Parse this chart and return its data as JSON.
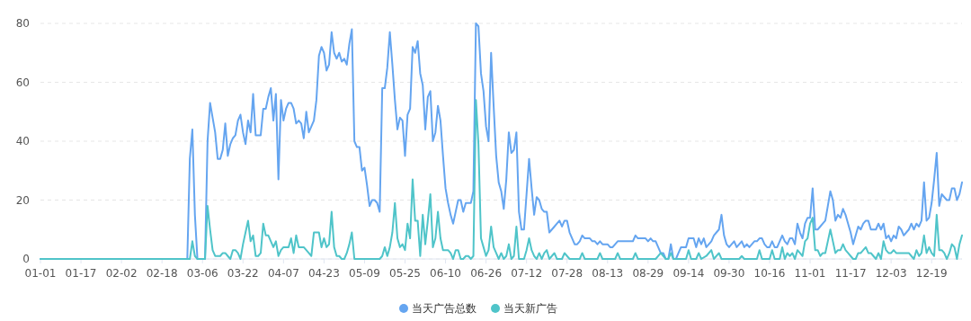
{
  "chart_data": {
    "type": "line",
    "xlim": [
      "--01-01",
      "--12-31"
    ],
    "ylim": [
      0,
      80
    ],
    "yticks": [
      0,
      20,
      40,
      60,
      80
    ],
    "xticks": [
      {
        "value": "--01-01",
        "label": "01-01"
      },
      {
        "value": "--01-17",
        "label": "01-17"
      },
      {
        "value": "--02-02",
        "label": "02-02"
      },
      {
        "value": "--02-18",
        "label": "02-18"
      },
      {
        "value": "--03-06",
        "label": "03-06"
      },
      {
        "value": "--03-22",
        "label": "03-22"
      },
      {
        "value": "--04-07",
        "label": "04-07"
      },
      {
        "value": "--04-23",
        "label": "04-23"
      },
      {
        "value": "--05-09",
        "label": "05-09"
      },
      {
        "value": "--05-25",
        "label": "05-25"
      },
      {
        "value": "--06-10",
        "label": "06-10"
      },
      {
        "value": "--06-26",
        "label": "06-26"
      },
      {
        "value": "--07-12",
        "label": "07-12"
      },
      {
        "value": "--07-28",
        "label": "07-28"
      },
      {
        "value": "--08-13",
        "label": "08-13"
      },
      {
        "value": "--08-29",
        "label": "08-29"
      },
      {
        "value": "--09-14",
        "label": "09-14"
      },
      {
        "value": "--09-30",
        "label": "09-30"
      },
      {
        "value": "--10-16",
        "label": "10-16"
      },
      {
        "value": "--11-01",
        "label": "11-01"
      },
      {
        "value": "--11-17",
        "label": "11-17"
      },
      {
        "value": "--12-03",
        "label": "12-03"
      },
      {
        "value": "--12-19",
        "label": "12-19"
      }
    ],
    "grid": "y",
    "legend": "bottom",
    "marker": "none",
    "line_style": "solid",
    "series": [
      {
        "name": "当天广告总数",
        "color": "#65a5f0",
        "x": [
          "--01-01",
          "--02-28",
          "--03-01",
          "--03-02",
          "--03-03",
          "--03-04",
          "--03-07",
          "--03-08",
          "--03-09",
          "--03-10",
          "--03-11",
          "--03-12",
          "--03-13",
          "--03-14",
          "--03-15",
          "--03-16",
          "--03-17",
          "--03-18",
          "--03-19",
          "--03-20",
          "--03-21",
          "--03-22",
          "--03-23",
          "--03-24",
          "--03-25",
          "--03-26",
          "--03-27",
          "--03-28",
          "--03-29",
          "--03-30",
          "--03-31",
          "--04-01",
          "--04-02",
          "--04-03",
          "--04-04",
          "--04-05",
          "--04-06",
          "--04-07",
          "--04-08",
          "--04-09",
          "--04-10",
          "--04-11",
          "--04-12",
          "--04-13",
          "--04-14",
          "--04-15",
          "--04-16",
          "--04-17",
          "--04-18",
          "--04-19",
          "--04-20",
          "--04-21",
          "--04-22",
          "--04-23",
          "--04-24",
          "--04-25",
          "--04-26",
          "--04-27",
          "--04-28",
          "--04-29",
          "--04-30",
          "--05-01",
          "--05-02",
          "--05-03",
          "--05-04",
          "--05-05",
          "--05-06",
          "--05-07",
          "--05-08",
          "--05-09",
          "--05-10",
          "--05-11",
          "--05-12",
          "--05-13",
          "--05-14",
          "--05-15",
          "--05-16",
          "--05-17",
          "--05-18",
          "--05-19",
          "--05-20",
          "--05-21",
          "--05-22",
          "--05-23",
          "--05-24",
          "--05-25",
          "--05-26",
          "--05-27",
          "--05-28",
          "--05-29",
          "--05-30",
          "--05-31",
          "--06-01",
          "--06-02",
          "--06-03",
          "--06-04",
          "--06-05",
          "--06-06",
          "--06-07",
          "--06-08",
          "--06-09",
          "--06-10",
          "--06-11",
          "--06-12",
          "--06-13",
          "--06-14",
          "--06-15",
          "--06-16",
          "--06-17",
          "--06-18",
          "--06-19",
          "--06-20",
          "--06-21",
          "--06-22",
          "--06-23",
          "--06-24",
          "--06-25",
          "--06-26",
          "--06-27",
          "--06-28",
          "--06-29",
          "--06-30",
          "--07-01",
          "--07-02",
          "--07-03",
          "--07-04",
          "--07-05",
          "--07-06",
          "--07-07",
          "--07-08",
          "--07-09",
          "--07-10",
          "--07-11",
          "--07-12",
          "--07-13",
          "--07-14",
          "--07-15",
          "--07-16",
          "--07-17",
          "--07-18",
          "--07-19",
          "--07-20",
          "--07-21",
          "--07-22",
          "--07-23",
          "--07-24",
          "--07-25",
          "--07-26",
          "--07-27",
          "--07-28",
          "--07-29",
          "--07-30",
          "--07-31",
          "--08-01",
          "--08-02",
          "--08-03",
          "--08-04",
          "--08-05",
          "--08-06",
          "--08-07",
          "--08-08",
          "--08-09",
          "--08-10",
          "--08-11",
          "--08-12",
          "--08-13",
          "--08-14",
          "--08-15",
          "--08-16",
          "--08-17",
          "--08-18",
          "--08-20",
          "--08-23",
          "--08-24",
          "--08-25",
          "--08-28",
          "--08-29",
          "--08-30",
          "--08-31",
          "--09-01",
          "--09-02",
          "--09-03",
          "--09-04",
          "--09-05",
          "--09-06",
          "--09-07",
          "--09-08",
          "--09-09",
          "--09-10",
          "--09-11",
          "--09-12",
          "--09-13",
          "--09-14",
          "--09-15",
          "--09-16",
          "--09-17",
          "--09-18",
          "--09-19",
          "--09-20",
          "--09-21",
          "--09-22",
          "--09-23",
          "--09-24",
          "--09-25",
          "--09-26",
          "--09-27",
          "--09-28",
          "--09-29",
          "--09-30",
          "--10-01",
          "--10-02",
          "--10-03",
          "--10-04",
          "--10-05",
          "--10-06",
          "--10-07",
          "--10-08",
          "--10-09",
          "--10-10",
          "--10-11",
          "--10-12",
          "--10-13",
          "--10-14",
          "--10-15",
          "--10-16",
          "--10-17",
          "--10-18",
          "--10-19",
          "--10-20",
          "--10-21",
          "--10-22",
          "--10-23",
          "--10-24",
          "--10-25",
          "--10-26",
          "--10-27",
          "--10-28",
          "--10-29",
          "--10-30",
          "--10-31",
          "--11-01",
          "--11-02",
          "--11-03",
          "--11-04",
          "--11-05",
          "--11-06",
          "--11-07",
          "--11-08",
          "--11-09",
          "--11-10",
          "--11-11",
          "--11-12",
          "--11-13",
          "--11-14",
          "--11-15",
          "--11-16",
          "--11-17",
          "--11-18",
          "--11-19",
          "--11-20",
          "--11-21",
          "--11-22",
          "--11-23",
          "--11-24",
          "--11-25",
          "--11-26",
          "--11-27",
          "--11-28",
          "--11-29",
          "--11-30",
          "--12-01",
          "--12-02",
          "--12-03",
          "--12-04",
          "--12-05",
          "--12-06",
          "--12-07",
          "--12-08",
          "--12-09",
          "--12-10",
          "--12-11",
          "--12-12",
          "--12-13",
          "--12-14",
          "--12-15",
          "--12-16",
          "--12-17",
          "--12-18",
          "--12-19",
          "--12-20",
          "--12-21",
          "--12-22",
          "--12-23",
          "--12-24",
          "--12-25",
          "--12-26",
          "--12-27",
          "--12-28",
          "--12-29",
          "--12-30",
          "--12-31"
        ],
        "values": [
          0,
          0,
          34,
          44,
          15,
          0,
          0,
          40,
          53,
          48,
          43,
          34,
          34,
          37,
          46,
          35,
          39,
          41,
          42,
          47,
          49,
          43,
          39,
          47,
          43,
          56,
          42,
          42,
          42,
          51,
          51,
          55,
          58,
          47,
          56,
          27,
          54,
          47,
          51,
          53,
          53,
          51,
          46,
          47,
          46,
          41,
          50,
          43,
          45,
          47,
          54,
          69,
          72,
          70,
          64,
          66,
          77,
          70,
          68,
          70,
          67,
          68,
          66,
          73,
          78,
          40,
          38,
          38,
          30,
          31,
          25,
          18,
          20,
          20,
          19,
          16,
          58,
          58,
          65,
          77,
          66,
          54,
          44,
          48,
          47,
          35,
          49,
          51,
          72,
          70,
          74,
          63,
          59,
          44,
          55,
          57,
          40,
          43,
          52,
          47,
          35,
          24,
          19,
          15,
          12,
          16,
          20,
          20,
          16,
          19,
          19,
          19,
          23,
          80,
          79,
          63,
          57,
          45,
          40,
          70,
          52,
          35,
          26,
          23,
          17,
          27,
          43,
          36,
          37,
          43,
          16,
          10,
          10,
          22,
          34,
          24,
          15,
          21,
          20,
          17,
          16,
          16,
          9,
          10,
          11,
          12,
          13,
          11,
          13,
          13,
          9,
          7,
          5,
          5,
          6,
          8,
          7,
          7,
          7,
          6,
          6,
          5,
          6,
          5,
          5,
          5,
          4,
          4,
          5,
          6,
          6,
          6,
          6,
          8,
          7,
          7,
          6,
          7,
          6,
          6,
          4,
          2,
          2,
          0,
          0,
          5,
          0,
          0,
          2,
          4,
          4,
          4,
          7,
          7,
          7,
          4,
          7,
          5,
          7,
          4,
          5,
          6,
          8,
          9,
          10,
          15,
          8,
          5,
          4,
          5,
          6,
          4,
          5,
          6,
          4,
          5,
          4,
          5,
          6,
          6,
          7,
          7,
          5,
          4,
          4,
          6,
          4,
          4,
          6,
          8,
          6,
          5,
          7,
          7,
          5,
          12,
          9,
          7,
          12,
          14,
          14,
          24,
          10,
          10,
          11,
          12,
          13,
          18,
          23,
          20,
          13,
          15,
          14,
          17,
          15,
          12,
          9,
          5,
          8,
          11,
          10,
          12,
          13,
          13,
          10,
          10,
          10,
          12,
          10,
          12,
          7,
          8,
          6,
          8,
          7,
          11,
          10,
          8,
          9,
          10,
          12,
          10,
          12,
          11,
          13,
          26,
          13,
          14,
          19,
          27,
          36,
          18,
          22,
          21,
          20,
          20,
          24,
          24,
          20,
          22,
          26
        ]
      },
      {
        "name": "当天新广告",
        "color": "#4fc4c9",
        "x": [
          "--01-01",
          "--03-01",
          "--03-02",
          "--03-03",
          "--03-04",
          "--03-07",
          "--03-08",
          "--03-09",
          "--03-10",
          "--03-11",
          "--03-12",
          "--03-13",
          "--03-14",
          "--03-15",
          "--03-16",
          "--03-17",
          "--03-18",
          "--03-19",
          "--03-20",
          "--03-21",
          "--03-22",
          "--03-23",
          "--03-24",
          "--03-25",
          "--03-26",
          "--03-27",
          "--03-28",
          "--03-29",
          "--03-30",
          "--03-31",
          "--04-01",
          "--04-02",
          "--04-03",
          "--04-04",
          "--04-05",
          "--04-06",
          "--04-07",
          "--04-08",
          "--04-09",
          "--04-10",
          "--04-11",
          "--04-12",
          "--04-13",
          "--04-14",
          "--04-15",
          "--04-16",
          "--04-17",
          "--04-18",
          "--04-19",
          "--04-20",
          "--04-21",
          "--04-22",
          "--04-23",
          "--04-24",
          "--04-25",
          "--04-26",
          "--04-27",
          "--04-28",
          "--04-29",
          "--04-30",
          "--05-01",
          "--05-02",
          "--05-03",
          "--05-04",
          "--05-05",
          "--05-15",
          "--05-16",
          "--05-17",
          "--05-18",
          "--05-19",
          "--05-20",
          "--05-21",
          "--05-22",
          "--05-23",
          "--05-24",
          "--05-25",
          "--05-26",
          "--05-27",
          "--05-28",
          "--05-29",
          "--05-30",
          "--05-31",
          "--06-01",
          "--06-02",
          "--06-03",
          "--06-04",
          "--06-05",
          "--06-06",
          "--06-07",
          "--06-08",
          "--06-09",
          "--06-10",
          "--06-11",
          "--06-12",
          "--06-13",
          "--06-14",
          "--06-15",
          "--06-16",
          "--06-17",
          "--06-18",
          "--06-19",
          "--06-20",
          "--06-21",
          "--06-22",
          "--06-23",
          "--06-24",
          "--06-25",
          "--06-26",
          "--06-27",
          "--06-28",
          "--06-29",
          "--06-30",
          "--07-01",
          "--07-02",
          "--07-03",
          "--07-04",
          "--07-05",
          "--07-06",
          "--07-07",
          "--07-08",
          "--07-09",
          "--07-11",
          "--07-12",
          "--07-13",
          "--07-14",
          "--07-15",
          "--07-16",
          "--07-17",
          "--07-18",
          "--07-19",
          "--07-20",
          "--07-21",
          "--07-22",
          "--07-23",
          "--07-24",
          "--07-26",
          "--07-27",
          "--07-28",
          "--07-29",
          "--08-02",
          "--08-03",
          "--08-04",
          "--08-09",
          "--08-10",
          "--08-11",
          "--08-16",
          "--08-17",
          "--08-18",
          "--08-23",
          "--08-24",
          "--08-25",
          "--09-01",
          "--09-03",
          "--09-05",
          "--09-06",
          "--09-07",
          "--09-08",
          "--09-13",
          "--09-14",
          "--09-15",
          "--09-17",
          "--09-18",
          "--09-19",
          "--09-21",
          "--09-23",
          "--09-24",
          "--09-26",
          "--09-27",
          "--10-04",
          "--10-05",
          "--10-06",
          "--10-11",
          "--10-12",
          "--10-13",
          "--10-16",
          "--10-17",
          "--10-18",
          "--10-20",
          "--10-21",
          "--10-22",
          "--10-23",
          "--10-24",
          "--10-25",
          "--10-26",
          "--10-27",
          "--10-28",
          "--10-29",
          "--10-30",
          "--10-31",
          "--11-01",
          "--11-02",
          "--11-03",
          "--11-04",
          "--11-05",
          "--11-06",
          "--11-07",
          "--11-08",
          "--11-09",
          "--11-10",
          "--11-11",
          "--11-12",
          "--11-13",
          "--11-14",
          "--11-15",
          "--11-16",
          "--11-17",
          "--11-18",
          "--11-19",
          "--11-20",
          "--11-21",
          "--11-22",
          "--11-23",
          "--11-24",
          "--11-25",
          "--11-26",
          "--11-27",
          "--11-28",
          "--11-29",
          "--11-30",
          "--12-01",
          "--12-02",
          "--12-03",
          "--12-04",
          "--12-05",
          "--12-06",
          "--12-07",
          "--12-08",
          "--12-09",
          "--12-10",
          "--12-11",
          "--12-12",
          "--12-13",
          "--12-14",
          "--12-15",
          "--12-16",
          "--12-17",
          "--12-18",
          "--12-19",
          "--12-20",
          "--12-21",
          "--12-22",
          "--12-23",
          "--12-24",
          "--12-25",
          "--12-26",
          "--12-27",
          "--12-28",
          "--12-29",
          "--12-30",
          "--12-31"
        ],
        "values": [
          0,
          0,
          6,
          1,
          0,
          0,
          18,
          10,
          3,
          1,
          1,
          1,
          2,
          2,
          1,
          0,
          3,
          3,
          2,
          0,
          5,
          9,
          13,
          6,
          8,
          1,
          1,
          2,
          12,
          8,
          8,
          6,
          4,
          6,
          1,
          3,
          4,
          4,
          4,
          7,
          2,
          8,
          4,
          4,
          4,
          3,
          2,
          1,
          9,
          9,
          9,
          4,
          7,
          4,
          5,
          16,
          4,
          1,
          1,
          0,
          0,
          2,
          5,
          9,
          0,
          0,
          1,
          4,
          1,
          4,
          9,
          19,
          7,
          4,
          5,
          3,
          12,
          7,
          27,
          13,
          13,
          1,
          15,
          5,
          13,
          22,
          4,
          7,
          16,
          7,
          3,
          3,
          3,
          2,
          0,
          3,
          3,
          0,
          0,
          1,
          1,
          0,
          1,
          54,
          39,
          7,
          4,
          1,
          3,
          11,
          4,
          2,
          0,
          2,
          0,
          1,
          5,
          0,
          1,
          11,
          0,
          0,
          3,
          7,
          3,
          1,
          0,
          2,
          0,
          2,
          3,
          0,
          1,
          2,
          0,
          0,
          2,
          1,
          0,
          0,
          2,
          0,
          0,
          2,
          0,
          0,
          2,
          0,
          0,
          2,
          0,
          0,
          2,
          0,
          0,
          2,
          0,
          0,
          3,
          0,
          0,
          2,
          0,
          1,
          3,
          0,
          2,
          0,
          0,
          1,
          0,
          0,
          3,
          0,
          0,
          3,
          0,
          0,
          4,
          0,
          2,
          1,
          2,
          0,
          3,
          2,
          1,
          6,
          7,
          12,
          14,
          3,
          3,
          1,
          2,
          2,
          6,
          10,
          6,
          2,
          3,
          3,
          5,
          3,
          2,
          1,
          0,
          0,
          2,
          2,
          3,
          4,
          2,
          2,
          1,
          0,
          2,
          0,
          6,
          3,
          2,
          2,
          3,
          2,
          2,
          2,
          2,
          2,
          2,
          1,
          0,
          3,
          1,
          2,
          8,
          2,
          4,
          2,
          1,
          15,
          3,
          3,
          2,
          0,
          2,
          5,
          4,
          0,
          5,
          8
        ]
      }
    ]
  }
}
